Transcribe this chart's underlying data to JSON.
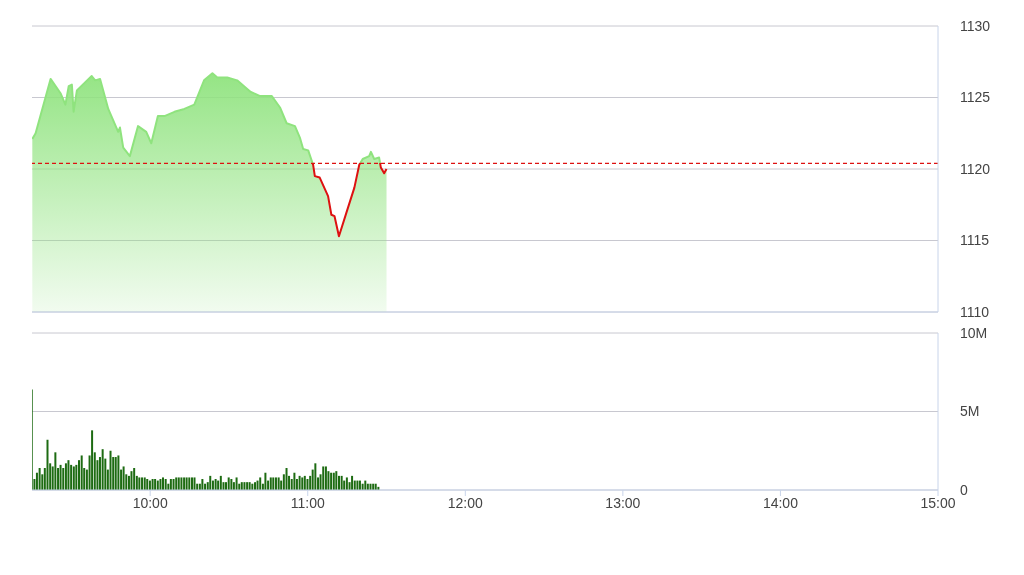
{
  "chart_data": [
    {
      "type": "area",
      "x": [
        9.252,
        9.273,
        9.368,
        9.431,
        9.462,
        9.483,
        9.503,
        9.514,
        9.535,
        9.629,
        9.651,
        9.682,
        9.734,
        9.797,
        9.808,
        9.829,
        9.871,
        9.923,
        9.975,
        10.007,
        10.049,
        10.091,
        10.154,
        10.217,
        10.28,
        10.342,
        10.395,
        10.426,
        10.489,
        10.552,
        10.636,
        10.698,
        10.772,
        10.824,
        10.866,
        10.919,
        10.95,
        10.971,
        11.003,
        11.034,
        11.045,
        11.076,
        11.129,
        11.15,
        11.17,
        11.198,
        11.244,
        11.296,
        11.327,
        11.349,
        11.39,
        11.401,
        11.422,
        11.453,
        11.464,
        11.485,
        11.5
      ],
      "series": [
        {
          "color": "#8fe37e",
          "values": [
            1122.1,
            1122.5,
            1126.3,
            1125.3,
            1124.5,
            1125.8,
            1125.9,
            1124.0,
            1125.5,
            1126.5,
            1126.2,
            1126.3,
            1124.2,
            1122.6,
            1122.9,
            1121.5,
            1120.9,
            1123.0,
            1122.6,
            1121.8,
            1123.7,
            1123.7,
            1124.0,
            1124.2,
            1124.5,
            1126.2,
            1126.7,
            1126.4,
            1126.4,
            1126.2,
            1125.4,
            1125.1,
            1125.1,
            1124.3,
            1123.2,
            1123.0,
            1122.2,
            1121.4,
            1121.3,
            1120.3,
            1119.5,
            1119.4,
            1118.1,
            1116.8,
            1116.7,
            1115.3,
            1116.9,
            1118.7,
            1120.3,
            1120.7,
            1120.9,
            1121.2,
            1120.7,
            1120.8,
            1120.1,
            1119.7,
            1120.0
          ]
        }
      ],
      "xlim": [
        9.25,
        15
      ],
      "ylim": [
        1110,
        1130
      ],
      "yticks": [
        1110,
        1115,
        1120,
        1125,
        1130
      ],
      "grid": "y",
      "tick_labels": "y",
      "ref_lines": [
        {
          "axis": "y",
          "value": 1120.4,
          "color": "#dd1111",
          "line_style": "dashed"
        }
      ]
    },
    {
      "type": "bar",
      "color": "#1d6b12",
      "x": [
        9.25,
        9.267,
        9.283,
        9.3,
        9.317,
        9.333,
        9.35,
        9.367,
        9.383,
        9.4,
        9.417,
        9.433,
        9.45,
        9.467,
        9.483,
        9.5,
        9.517,
        9.533,
        9.55,
        9.567,
        9.583,
        9.6,
        9.617,
        9.633,
        9.65,
        9.667,
        9.683,
        9.7,
        9.717,
        9.733,
        9.75,
        9.767,
        9.783,
        9.8,
        9.817,
        9.833,
        9.85,
        9.867,
        9.883,
        9.9,
        9.917,
        9.933,
        9.95,
        9.967,
        9.983,
        10.0,
        10.017,
        10.033,
        10.05,
        10.067,
        10.083,
        10.1,
        10.117,
        10.133,
        10.15,
        10.167,
        10.183,
        10.2,
        10.217,
        10.233,
        10.25,
        10.267,
        10.283,
        10.3,
        10.317,
        10.333,
        10.35,
        10.367,
        10.383,
        10.4,
        10.417,
        10.433,
        10.45,
        10.467,
        10.483,
        10.5,
        10.517,
        10.533,
        10.55,
        10.567,
        10.583,
        10.6,
        10.617,
        10.633,
        10.65,
        10.667,
        10.683,
        10.7,
        10.717,
        10.733,
        10.75,
        10.767,
        10.783,
        10.8,
        10.817,
        10.833,
        10.85,
        10.867,
        10.883,
        10.9,
        10.917,
        10.933,
        10.95,
        10.967,
        10.983,
        11.0,
        11.017,
        11.033,
        11.05,
        11.067,
        11.083,
        11.1,
        11.117,
        11.133,
        11.15,
        11.167,
        11.183,
        11.2,
        11.217,
        11.233,
        11.25,
        11.267,
        11.283,
        11.3,
        11.317,
        11.333,
        11.35,
        11.367,
        11.383,
        11.4,
        11.417,
        11.433,
        11.45
      ],
      "values": [
        6.4,
        0.7,
        1.1,
        1.4,
        1.0,
        1.4,
        3.2,
        1.7,
        1.5,
        2.4,
        1.4,
        1.6,
        1.4,
        1.7,
        1.9,
        1.6,
        1.5,
        1.6,
        1.9,
        2.2,
        1.4,
        1.3,
        2.2,
        3.8,
        2.4,
        1.9,
        2.1,
        2.6,
        2.0,
        1.3,
        2.5,
        2.1,
        2.1,
        2.2,
        1.3,
        1.5,
        1.0,
        0.9,
        1.2,
        1.4,
        0.9,
        0.8,
        0.8,
        0.8,
        0.7,
        0.6,
        0.7,
        0.7,
        0.6,
        0.7,
        0.8,
        0.7,
        0.4,
        0.7,
        0.7,
        0.8,
        0.8,
        0.8,
        0.8,
        0.8,
        0.8,
        0.8,
        0.8,
        0.4,
        0.4,
        0.7,
        0.4,
        0.5,
        0.9,
        0.6,
        0.7,
        0.6,
        0.9,
        0.5,
        0.5,
        0.8,
        0.7,
        0.5,
        0.8,
        0.4,
        0.5,
        0.5,
        0.5,
        0.5,
        0.4,
        0.5,
        0.6,
        0.8,
        0.4,
        1.1,
        0.6,
        0.8,
        0.8,
        0.8,
        0.8,
        0.6,
        1.0,
        1.4,
        0.9,
        0.7,
        1.1,
        0.7,
        0.9,
        0.8,
        0.9,
        0.7,
        0.9,
        1.3,
        1.7,
        0.8,
        1.0,
        1.5,
        1.5,
        1.2,
        1.1,
        1.1,
        1.2,
        0.9,
        0.9,
        0.6,
        0.8,
        0.5,
        0.9,
        0.6,
        0.6,
        0.6,
        0.4,
        0.6,
        0.4,
        0.4,
        0.4,
        0.4,
        0.2
      ],
      "xlim": [
        9.25,
        15
      ],
      "xticks": [
        {
          "value": 10,
          "label": "10:00"
        },
        {
          "value": 11,
          "label": "11:00"
        },
        {
          "value": 12,
          "label": "12:00"
        },
        {
          "value": 13,
          "label": "13:00"
        },
        {
          "value": 14,
          "label": "14:00"
        },
        {
          "value": 15,
          "label": "15:00"
        }
      ],
      "ylim": [
        0,
        10
      ],
      "yticks": [
        {
          "value": 0,
          "label": "0"
        },
        {
          "value": 5,
          "label": "5M"
        },
        {
          "value": 10,
          "label": "10M"
        }
      ],
      "grid": "y"
    }
  ]
}
